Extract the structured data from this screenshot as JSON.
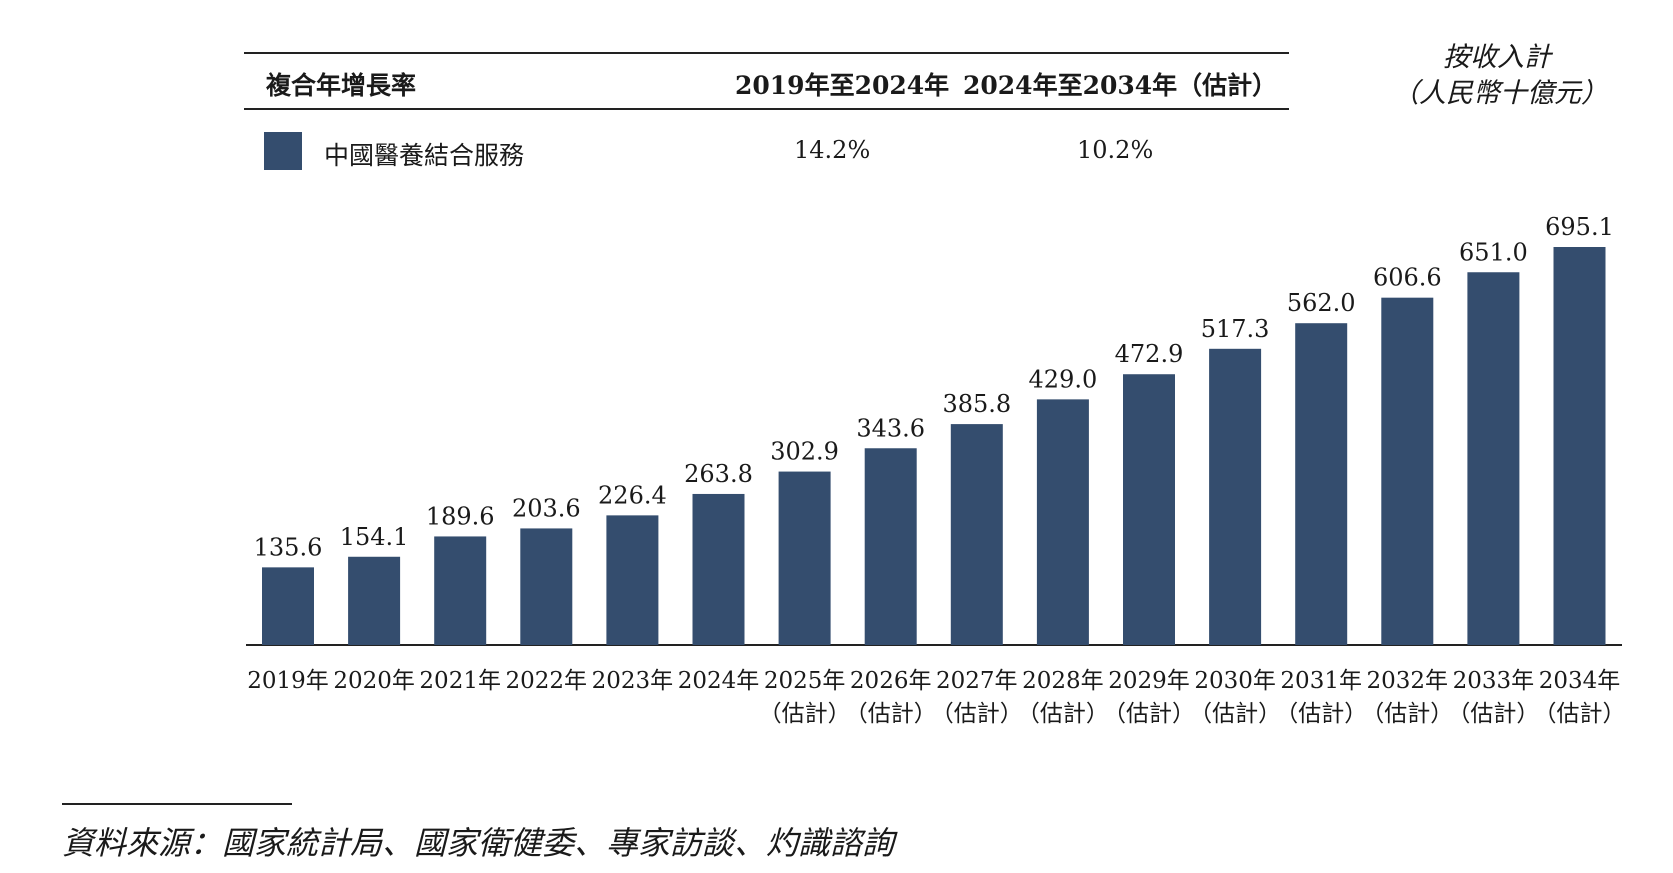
{
  "table": {
    "header_label": "複合年增長率",
    "col1_header": "2019年至2024年",
    "col2_header": "2024年至2034年（估計）",
    "series_name": "中國醫養結合服務",
    "col1_value": "14.2%",
    "col2_value": "10.2%",
    "swatch_color": "#344d6e"
  },
  "unit": {
    "line1": "按收入計",
    "line2": "（人民幣十億元）"
  },
  "source": "資料來源：國家統計局、國家衛健委、專家訪談、灼識諮詢",
  "chart_data": {
    "type": "bar",
    "categories": [
      "2019年",
      "2020年",
      "2021年",
      "2022年",
      "2023年",
      "2024年",
      "2025年\n（估計）",
      "2026年\n（估計）",
      "2027年\n（估計）",
      "2028年\n（估計）",
      "2029年\n（估計）",
      "2030年\n（估計）",
      "2031年\n（估計）",
      "2032年\n（估計）",
      "2033年\n（估計）",
      "2034年\n（估計）"
    ],
    "values": [
      135.6,
      154.1,
      189.6,
      203.6,
      226.4,
      263.8,
      302.9,
      343.6,
      385.8,
      429.0,
      472.9,
      517.3,
      562.0,
      606.6,
      651.0,
      695.1
    ],
    "value_labels": [
      "135.6",
      "154.1",
      "189.6",
      "203.6",
      "226.4",
      "263.8",
      "302.9",
      "343.6",
      "385.8",
      "429.0",
      "472.9",
      "517.3",
      "562.0",
      "606.6",
      "651.0",
      "695.1"
    ],
    "bar_color": "#344d6e",
    "ylim": [
      0,
      695.1
    ],
    "grid": false,
    "legend": "top-left"
  }
}
